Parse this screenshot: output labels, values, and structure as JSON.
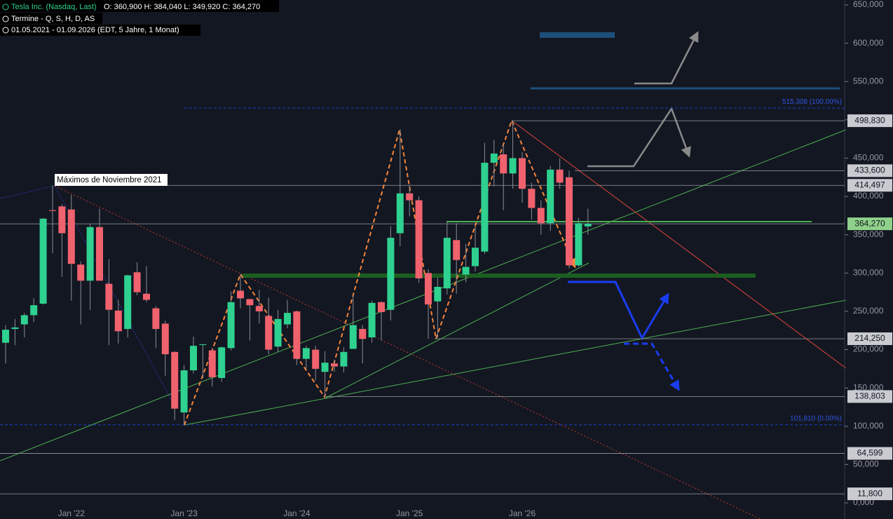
{
  "header": {
    "symbol": "Tesla Inc. (Nasdaq, Last)",
    "ohlc": "O: 360,900 H: 384,040 L: 349,920 C: 364,270",
    "line2": "Termine  - Q, S, H, D, AS",
    "line3": "01.05.2021 - 01.09.2026  (EDT, 5 Jahre, 1 Monat)"
  },
  "chart_data": {
    "type": "candlestick",
    "annotation": "Máximos de Noviembre 2021",
    "categories": [
      null,
      null,
      null,
      null,
      null,
      null,
      null,
      "Jan '22",
      null,
      null,
      null,
      null,
      null,
      null,
      null,
      null,
      null,
      null,
      null,
      "Jan '23",
      null,
      null,
      null,
      null,
      null,
      null,
      null,
      null,
      null,
      null,
      null,
      "Jan '24",
      null,
      null,
      null,
      null,
      null,
      null,
      null,
      null,
      null,
      null,
      null,
      "Jan '25",
      null,
      null,
      null,
      null,
      null,
      null,
      null,
      null,
      null,
      null,
      null,
      "Jan '26",
      null,
      null,
      null,
      null,
      null,
      null,
      null
    ],
    "open": [
      209000,
      227000,
      233000,
      245000,
      260000,
      382000,
      387000,
      383000,
      311000,
      290000,
      360000,
      286000,
      251000,
      227000,
      301000,
      273000,
      254000,
      234000,
      197000,
      118000,
      173000,
      206000,
      199000,
      163000,
      202000,
      277000,
      266000,
      257000,
      244000,
      204000,
      233000,
      250000,
      188000,
      200000,
      171000,
      182000,
      178000,
      201000,
      227000,
      216000,
      262000,
      252000,
      352000,
      404000,
      395000,
      300000,
      263000,
      280000,
      343000,
      298000,
      309000,
      328000,
      444000,
      455000,
      430000,
      450000,
      410000,
      385000,
      365000,
      435000,
      425000,
      310000,
      360900
    ],
    "high": [
      232000,
      240000,
      248000,
      267000,
      372000,
      414497,
      390000,
      402000,
      315000,
      364000,
      384000,
      318000,
      265000,
      298000,
      314000,
      309000,
      257000,
      238000,
      198000,
      180000,
      217000,
      207000,
      202000,
      204000,
      276000,
      299000,
      266000,
      278000,
      268000,
      252000,
      265000,
      251000,
      205000,
      205000,
      198000,
      187000,
      203000,
      271000,
      232000,
      264000,
      263000,
      361000,
      488000,
      415000,
      400000,
      305000,
      294000,
      367000,
      365000,
      338000,
      361000,
      470000,
      474000,
      468000,
      498830,
      458000,
      418000,
      395000,
      440000,
      450000,
      433600,
      372000,
      384040
    ],
    "low": [
      182000,
      206000,
      216000,
      236000,
      259000,
      326000,
      295000,
      264000,
      233000,
      252000,
      290000,
      206000,
      208000,
      216000,
      271000,
      262000,
      202000,
      166000,
      108000,
      101810,
      169000,
      163000,
      152000,
      158000,
      199000,
      254000,
      212000,
      234000,
      194000,
      197000,
      228000,
      180000,
      175000,
      160000,
      138803,
      171000,
      170000,
      201000,
      182000,
      209000,
      212000,
      238000,
      335000,
      374000,
      287000,
      214250,
      216000,
      272000,
      273000,
      288000,
      302000,
      325000,
      413000,
      382000,
      410000,
      392000,
      370000,
      350000,
      355000,
      410000,
      306000,
      308000,
      349920
    ],
    "close": [
      226000,
      229000,
      245000,
      258000,
      371000,
      381000,
      352000,
      312000,
      290000,
      360000,
      290000,
      252000,
      224000,
      297000,
      275000,
      265000,
      227000,
      194000,
      123000,
      173000,
      205000,
      207000,
      164000,
      203000,
      262000,
      267000,
      258000,
      250000,
      200000,
      240000,
      248000,
      188000,
      202000,
      175000,
      183000,
      178000,
      197000,
      232000,
      214000,
      261000,
      249000,
      346000,
      404000,
      395000,
      293000,
      259000,
      282000,
      346000,
      317000,
      308000,
      333000,
      444000,
      456000,
      430000,
      450000,
      410000,
      385000,
      365000,
      435000,
      418000,
      310000,
      365000,
      364270
    ],
    "up_color": "#2ed18f",
    "down_color": "#f0626d",
    "ylim": [
      0,
      650000
    ],
    "yticks": [
      {
        "value": 0,
        "label": "0,000"
      },
      {
        "value": 50000,
        "label": "50,000"
      },
      {
        "value": 100000,
        "label": "100,000"
      },
      {
        "value": 150000,
        "label": "150,000"
      },
      {
        "value": 200000,
        "label": "200,000"
      },
      {
        "value": 250000,
        "label": "250,000"
      },
      {
        "value": 300000,
        "label": "300,000"
      },
      {
        "value": 350000,
        "label": "350,000"
      },
      {
        "value": 400000,
        "label": "400,000"
      },
      {
        "value": 450000,
        "label": "450,000"
      },
      {
        "value": 500000,
        "label": "500,000"
      },
      {
        "value": 550000,
        "label": "550,000"
      },
      {
        "value": 600000,
        "label": "600,000"
      },
      {
        "value": 650000,
        "label": "650,000"
      }
    ],
    "levels": [
      {
        "value": 498830,
        "label": "498,830"
      },
      {
        "value": 433600,
        "label": "433,600"
      },
      {
        "value": 414497,
        "label": "414,497"
      },
      {
        "value": 364270,
        "label": "364,270"
      },
      {
        "value": 214250,
        "label": "214,250"
      },
      {
        "value": 138803,
        "label": "138,803"
      },
      {
        "value": 64599,
        "label": "64,599"
      },
      {
        "value": 11800,
        "label": "11,800"
      }
    ],
    "fib_levels": [
      {
        "value": 515308,
        "label": "515,308 (100.00%)"
      },
      {
        "value": 101810,
        "label": "101,810 (0.00%)"
      }
    ],
    "grid": false
  }
}
